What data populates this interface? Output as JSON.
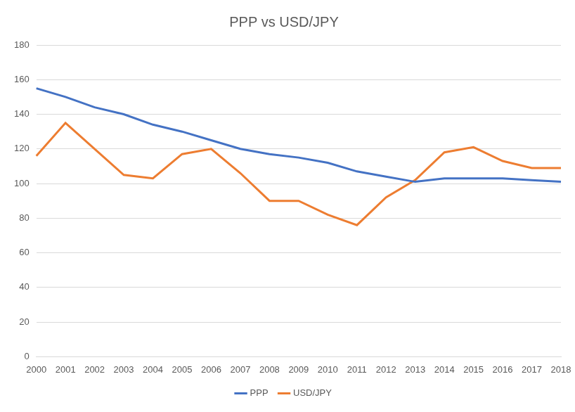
{
  "chart_data": {
    "type": "line",
    "title": "PPP vs USD/JPY",
    "categories": [
      "2000",
      "2001",
      "2002",
      "2003",
      "2004",
      "2005",
      "2006",
      "2007",
      "2008",
      "2009",
      "2010",
      "2011",
      "2012",
      "2013",
      "2014",
      "2015",
      "2016",
      "2017",
      "2018"
    ],
    "series": [
      {
        "name": "PPP",
        "color": "#4472c4",
        "values": [
          155,
          150,
          144,
          140,
          134,
          130,
          125,
          120,
          117,
          115,
          112,
          107,
          104,
          101,
          103,
          103,
          103,
          102,
          101
        ]
      },
      {
        "name": "USD/JPY",
        "color": "#ed7d31",
        "values": [
          116,
          135,
          120,
          105,
          103,
          117,
          120,
          106,
          90,
          90,
          82,
          76,
          92,
          102,
          118,
          121,
          113,
          109,
          109
        ]
      }
    ],
    "ylim": [
      0,
      180
    ],
    "yticks": [
      0,
      20,
      40,
      60,
      80,
      100,
      120,
      140,
      160,
      180
    ],
    "grid": true,
    "legend": "bottom"
  }
}
